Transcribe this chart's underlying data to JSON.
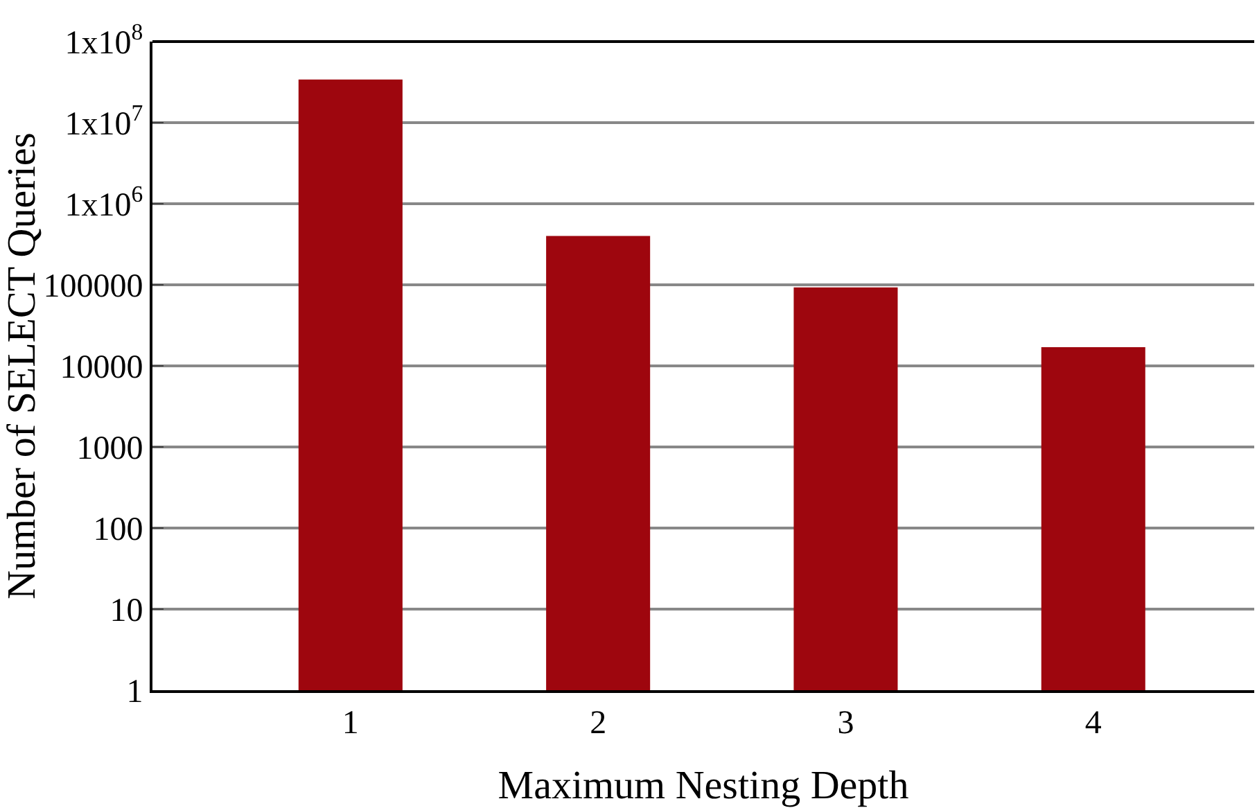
{
  "chart_data": {
    "type": "bar",
    "xlabel": "Maximum Nesting Depth",
    "ylabel": "Number of SELECT Queries",
    "categories": [
      "1",
      "2",
      "3",
      "4"
    ],
    "series": [
      {
        "color": "#9e060e",
        "values": [
          34000000,
          400000,
          93000,
          17000
        ]
      }
    ],
    "log": "y",
    "ylim": [
      1,
      100000000
    ],
    "yticks": [
      1,
      10,
      100,
      1000,
      10000,
      100000,
      {
        "value": 1000000,
        "label": "1x10$^{6}$"
      },
      {
        "value": 10000000,
        "label": "1x10$^{7}$"
      },
      {
        "value": 100000000,
        "label": "1x10$^{8}$"
      }
    ],
    "grid": "y",
    "legend": false
  }
}
